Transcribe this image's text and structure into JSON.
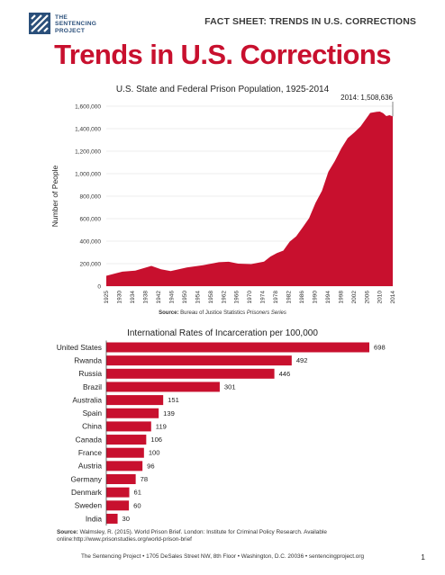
{
  "header": {
    "org_line1": "THE",
    "org_line2": "SENTENCING",
    "org_line3": "PROJECT",
    "fact_sheet": "FACT SHEET: TRENDS IN U.S. CORRECTIONS"
  },
  "title": "Trends in U.S. Corrections",
  "source2_label": "Source:",
  "source2_text": "Walmsley, R. (2015). World Prison Brief. London: Institute for Criminal Policy Research. Available online:http://www.prisonstudies.org/world-prison-brief",
  "footer": "The Sentencing Project • 1705 DeSales Street NW, 8th Floor • Washington, D.C. 20036 • sentencingproject.org",
  "page_number": "1",
  "colors": {
    "accent": "#c8102e",
    "logo": "#2a4f7a"
  },
  "chart_data": [
    {
      "type": "area",
      "title": "U.S. State and Federal Prison Population, 1925-2014",
      "ylabel": "Number of People",
      "xlabel": "",
      "source_label": "Source:",
      "source_text": "Bureau of Justice Statistics",
      "source_italic": "Prisoners Series",
      "annotation": "2014: 1,508,636",
      "ylim": [
        0,
        1600000
      ],
      "xlim": [
        1925,
        2014
      ],
      "y_ticks": [
        0,
        200000,
        400000,
        600000,
        800000,
        1000000,
        1200000,
        1400000,
        1600000
      ],
      "y_tick_labels": [
        "0",
        "200,000",
        "400,000",
        "600,000",
        "800,000",
        "1,000,000",
        "1,200,000",
        "1,400,000",
        "1,600,000"
      ],
      "x_tick_labels": [
        "1925",
        "1930",
        "1934",
        "1938",
        "1942",
        "1946",
        "1950",
        "1954",
        "1958",
        "1962",
        "1966",
        "1970",
        "1974",
        "1978",
        "1982",
        "1986",
        "1990",
        "1994",
        "1998",
        "2002",
        "2006",
        "2010",
        "2014"
      ],
      "grid": true,
      "x": [
        1925,
        1930,
        1934,
        1939,
        1942,
        1945,
        1950,
        1955,
        1960,
        1963,
        1966,
        1970,
        1974,
        1976,
        1978,
        1980,
        1982,
        1984,
        1986,
        1988,
        1990,
        1992,
        1994,
        1996,
        1998,
        2000,
        2002,
        2004,
        2006,
        2007,
        2008,
        2009,
        2010,
        2011,
        2012,
        2013,
        2014
      ],
      "y": [
        91669,
        129453,
        138316,
        179818,
        150384,
        133649,
        166123,
        185780,
        212953,
        217283,
        199654,
        196429,
        218466,
        262833,
        294396,
        315974,
        395516,
        443398,
        522084,
        603732,
        739980,
        847271,
        1016691,
        1112000,
        1224469,
        1316333,
        1365000,
        1420000,
        1500000,
        1540000,
        1545000,
        1550000,
        1552000,
        1538000,
        1512000,
        1520000,
        1508636
      ]
    },
    {
      "type": "bar",
      "orientation": "horizontal",
      "title": "International Rates of Incarceration per 100,000",
      "categories": [
        "United States",
        "Rwanda",
        "Russia",
        "Brazil",
        "Australia",
        "Spain",
        "China",
        "Canada",
        "France",
        "Austria",
        "Germany",
        "Denmark",
        "Sweden",
        "India"
      ],
      "values": [
        698,
        492,
        446,
        301,
        151,
        139,
        119,
        106,
        100,
        96,
        78,
        61,
        60,
        30
      ]
    }
  ]
}
